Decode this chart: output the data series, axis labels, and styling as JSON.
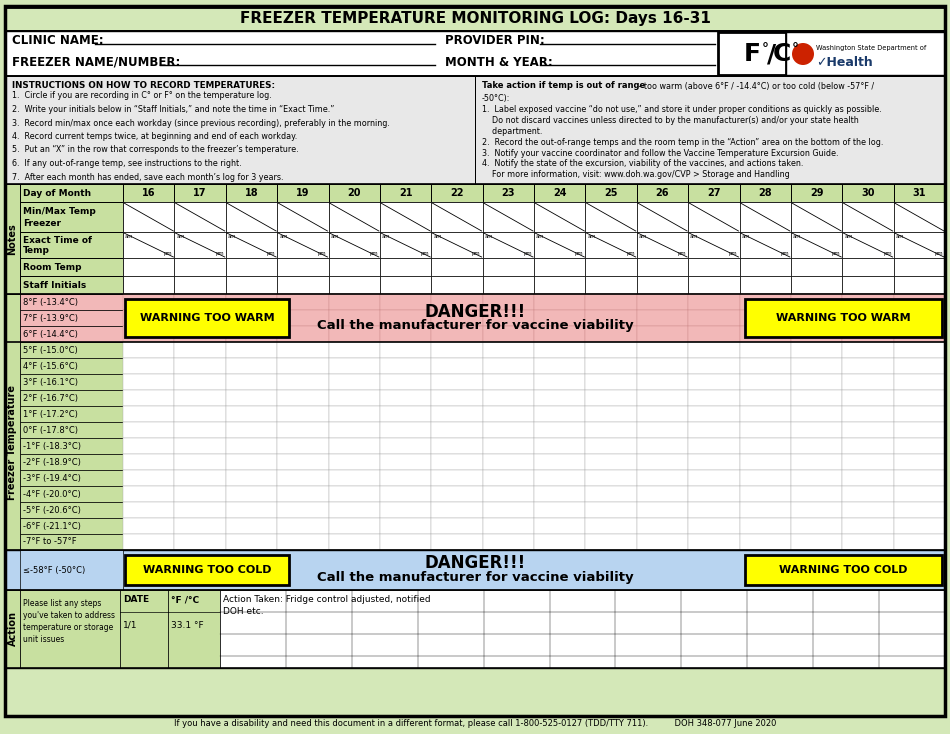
{
  "title": "FREEZER TEMPERATURE MONITORING LOG: Days 16-31",
  "bg_outer": "#d4e8b8",
  "bg_white": "#ffffff",
  "bg_instr": "#e8e8e8",
  "bg_pink": "#f2b8b8",
  "bg_blue": "#b8d4f0",
  "bg_yellow": "#ffff00",
  "bg_header_row": "#c8e0a0",
  "bg_label_col": "#c8e0a0",
  "days": [
    "16",
    "17",
    "18",
    "19",
    "20",
    "21",
    "22",
    "23",
    "24",
    "25",
    "26",
    "27",
    "28",
    "29",
    "30",
    "31"
  ],
  "temp_rows_warm": [
    "8°F (-13.4°C)",
    "7°F (-13.9°C)",
    "6°F (-14.4°C)"
  ],
  "temp_rows_main": [
    "5°F (-15.0°C)",
    "4°F (-15.6°C)",
    "3°F (-16.1°C)",
    "2°F (-16.7°C)",
    "1°F (-17.2°C)",
    "0°F (-17.8°C)",
    "-1°F (-18.3°C)",
    "-2°F (-18.9°C)",
    "-3°F (-19.4°C)",
    "-4°F (-20.0°C)",
    "-5°F (-20.6°C)",
    "-6°F (-21.1°C)",
    "-7°F to -57°F"
  ],
  "footer": "If you have a disability and need this document in a different format, please call 1-800-525-0127 (TDD/TTY 711).          DOH 348-077 June 2020"
}
